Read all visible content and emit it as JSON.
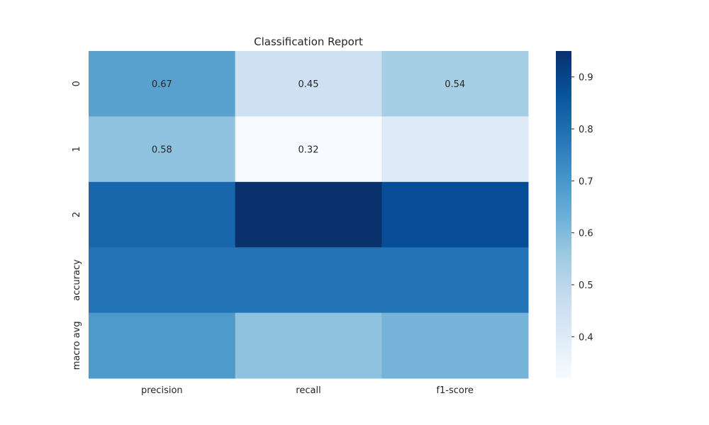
{
  "chart_data": {
    "type": "heatmap",
    "title": "Classification Report",
    "xlabel": "",
    "ylabel": "",
    "x_categories": [
      "precision",
      "recall",
      "f1-score"
    ],
    "y_categories": [
      "0",
      "1",
      "2",
      "accuracy",
      "macro avg"
    ],
    "values": [
      [
        0.67,
        0.45,
        0.54
      ],
      [
        0.58,
        0.32,
        0.4
      ],
      [
        0.82,
        0.95,
        0.88
      ],
      [
        0.79,
        0.79,
        0.79
      ],
      [
        0.69,
        0.58,
        0.62
      ]
    ],
    "annotations": [
      [
        "0.67",
        "0.45",
        "0.54"
      ],
      [
        "0.58",
        "0.32",
        ""
      ],
      [
        "",
        "",
        ""
      ],
      [
        "",
        "",
        ""
      ],
      [
        "",
        "",
        ""
      ]
    ],
    "colormap": "Blues",
    "colorbar": {
      "vmin": 0.32,
      "vmax": 0.95,
      "ticks": [
        0.4,
        0.5,
        0.6,
        0.7,
        0.8,
        0.9
      ],
      "tick_labels": [
        "0.4",
        "0.5",
        "0.6",
        "0.7",
        "0.8",
        "0.9"
      ]
    }
  }
}
